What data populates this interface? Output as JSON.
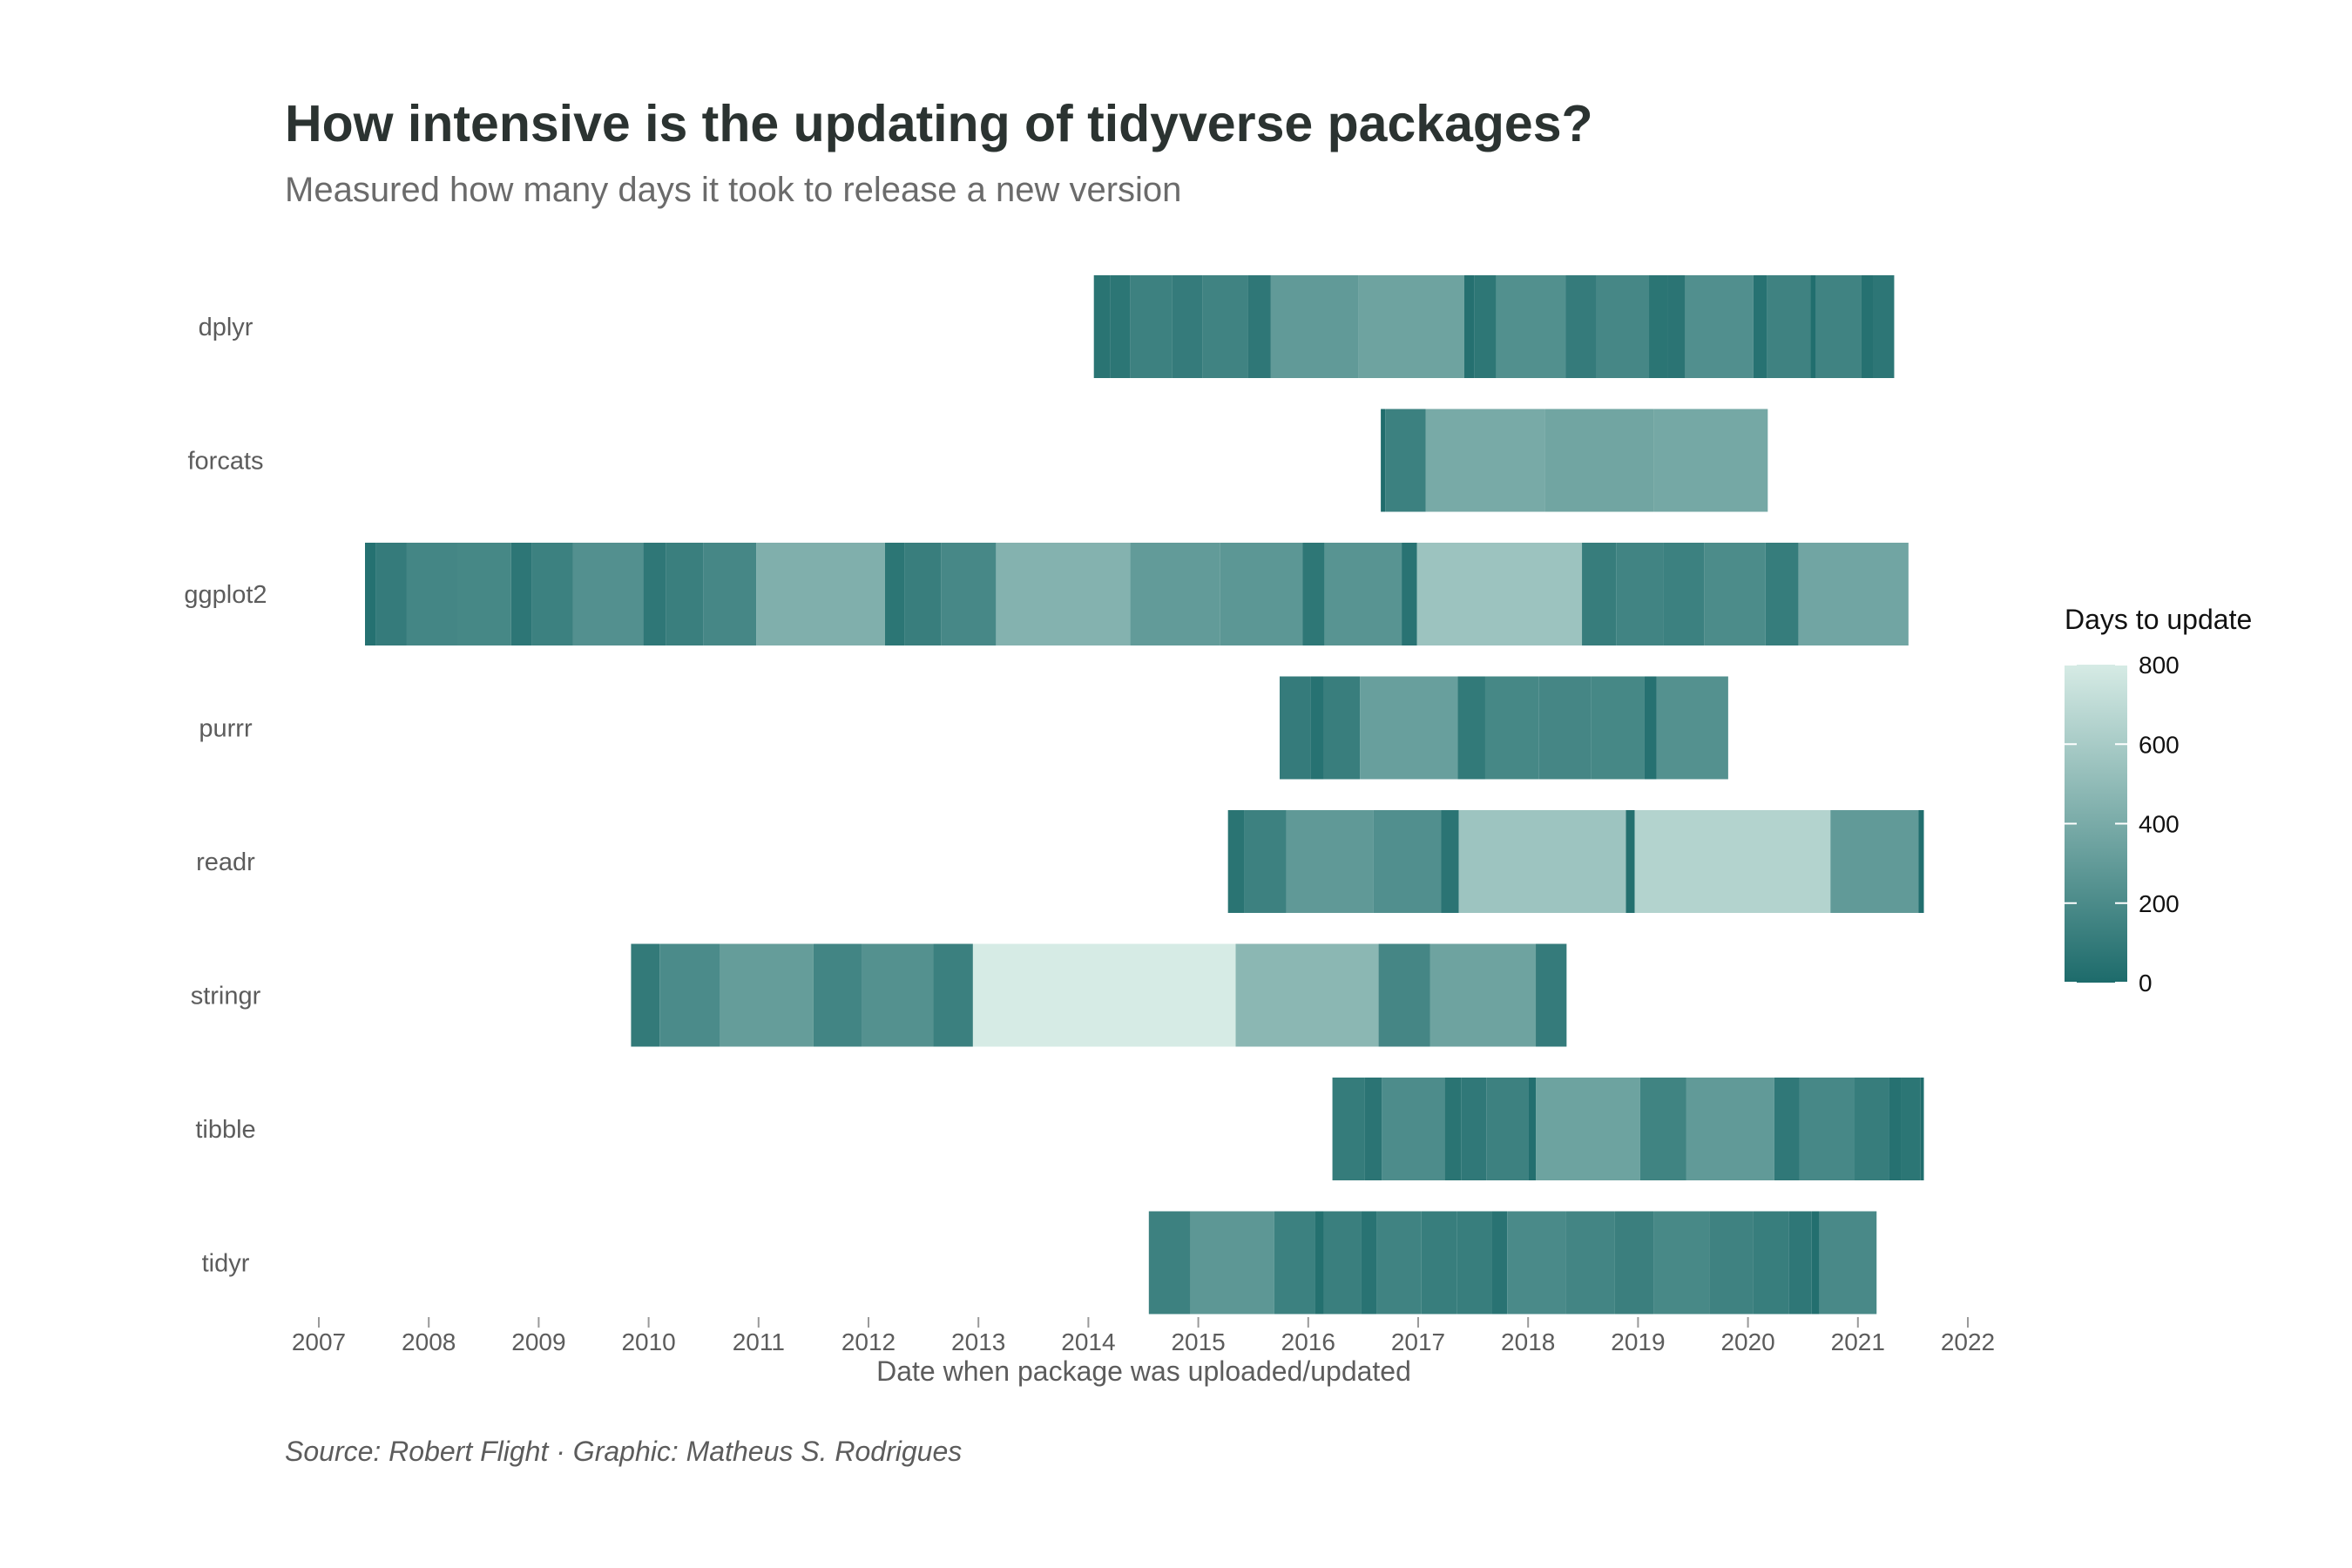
{
  "title": "How intensive is the updating of tidyverse packages?",
  "subtitle": "Measured how many days it took to release a new version",
  "caption": "Source: Robert Flight · Graphic: Matheus S. Rodrigues",
  "chart_data": {
    "type": "timeline",
    "title": "How intensive is the updating of tidyverse packages?",
    "subtitle": "Measured how many days it took to release a new version",
    "xlabel": "Date when package was uploaded/updated",
    "ylabel": "",
    "xlim": [
      2007,
      2022
    ],
    "x_ticks": [
      "2007",
      "2008",
      "2009",
      "2010",
      "2011",
      "2012",
      "2013",
      "2014",
      "2015",
      "2016",
      "2017",
      "2018",
      "2019",
      "2020",
      "2021",
      "2022"
    ],
    "grid": false,
    "categories": [
      "dplyr",
      "forcats",
      "ggplot2",
      "purrr",
      "readr",
      "stringr",
      "tibble",
      "tidyr"
    ],
    "legend": {
      "title": "Days to update",
      "position": "right",
      "ticks": [
        0,
        200,
        400,
        600,
        800
      ],
      "color_low": "#1d6b6b",
      "color_high": "#d6ebe5"
    },
    "series": [
      {
        "name": "dplyr",
        "updates": [
          2014.05,
          2014.2,
          2014.38,
          2014.76,
          2015.04,
          2015.45,
          2015.66,
          2016.46,
          2017.42,
          2017.51,
          2017.71,
          2018.34,
          2018.62,
          2019.1,
          2019.27,
          2019.43,
          2020.05,
          2020.17,
          2020.57,
          2020.62,
          2021.03,
          2021.14,
          2021.33
        ]
      },
      {
        "name": "forcats",
        "updates": [
          2016.66,
          2016.7,
          2017.07,
          2018.15,
          2019.14,
          2020.18
        ]
      },
      {
        "name": "ggplot2",
        "updates": [
          2007.42,
          2007.52,
          2007.8,
          2008.26,
          2008.75,
          2008.94,
          2009.31,
          2009.95,
          2010.16,
          2010.5,
          2010.98,
          2012.15,
          2012.33,
          2012.66,
          2013.16,
          2014.38,
          2015.2,
          2015.95,
          2016.15,
          2016.85,
          2016.99,
          2018.49,
          2018.8,
          2019.23,
          2019.6,
          2020.16,
          2020.46,
          2021.46
        ]
      },
      {
        "name": "purrr",
        "updates": [
          2015.74,
          2016.02,
          2016.14,
          2016.47,
          2017.36,
          2017.61,
          2018.1,
          2018.57,
          2019.06,
          2019.17,
          2019.82
        ]
      },
      {
        "name": "readr",
        "updates": [
          2015.27,
          2015.42,
          2015.8,
          2016.59,
          2017.21,
          2017.37,
          2018.89,
          2018.97,
          2020.75,
          2021.55,
          2021.6
        ]
      },
      {
        "name": "stringr",
        "updates": [
          2009.84,
          2010.1,
          2010.65,
          2011.5,
          2011.94,
          2012.59,
          2012.95,
          2015.34,
          2016.64,
          2017.11,
          2018.07,
          2018.35
        ]
      },
      {
        "name": "tibble",
        "updates": [
          2016.22,
          2016.51,
          2016.67,
          2017.24,
          2017.39,
          2017.62,
          2018.0,
          2018.07,
          2019.02,
          2019.44,
          2020.24,
          2020.47,
          2020.97,
          2021.28,
          2021.39,
          2021.57,
          2021.6
        ]
      },
      {
        "name": "tidyr",
        "updates": [
          2014.55,
          2014.93,
          2015.69,
          2016.06,
          2016.14,
          2016.48,
          2016.62,
          2017.03,
          2017.35,
          2017.67,
          2017.81,
          2018.34,
          2018.79,
          2019.14,
          2019.65,
          2020.05,
          2020.37,
          2020.58,
          2020.65,
          2021.17
        ]
      }
    ]
  }
}
